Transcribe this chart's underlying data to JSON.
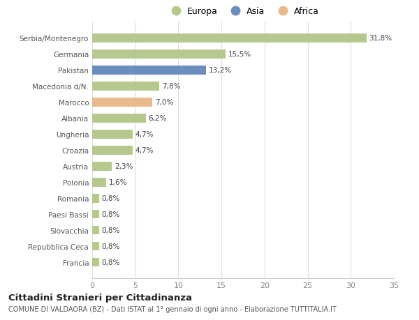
{
  "categories": [
    "Serbia/Montenegro",
    "Germania",
    "Pakistan",
    "Macedonia d/N.",
    "Marocco",
    "Albania",
    "Ungheria",
    "Croazia",
    "Austria",
    "Polonia",
    "Romania",
    "Paesi Bassi",
    "Slovacchia",
    "Repubblica Ceca",
    "Francia"
  ],
  "values": [
    31.8,
    15.5,
    13.2,
    7.8,
    7.0,
    6.2,
    4.7,
    4.7,
    2.3,
    1.6,
    0.8,
    0.8,
    0.8,
    0.8,
    0.8
  ],
  "labels": [
    "31,8%",
    "15,5%",
    "13,2%",
    "7,8%",
    "7,0%",
    "6,2%",
    "4,7%",
    "4,7%",
    "2,3%",
    "1,6%",
    "0,8%",
    "0,8%",
    "0,8%",
    "0,8%",
    "0,8%"
  ],
  "colors": [
    "#b5c98e",
    "#b5c98e",
    "#6a8fbf",
    "#b5c98e",
    "#e8b98a",
    "#b5c98e",
    "#b5c98e",
    "#b5c98e",
    "#b5c98e",
    "#b5c98e",
    "#b5c98e",
    "#b5c98e",
    "#b5c98e",
    "#b5c98e",
    "#b5c98e"
  ],
  "legend": [
    {
      "label": "Europa",
      "color": "#b5c98e"
    },
    {
      "label": "Asia",
      "color": "#6a8fbf"
    },
    {
      "label": "Africa",
      "color": "#e8b98a"
    }
  ],
  "xlim": [
    0,
    35
  ],
  "xticks": [
    0,
    5,
    10,
    15,
    20,
    25,
    30,
    35
  ],
  "title": "Cittadini Stranieri per Cittadinanza",
  "subtitle": "COMUNE DI VALDAORA (BZ) - Dati ISTAT al 1° gennaio di ogni anno - Elaborazione TUTTITALIA.IT",
  "background_color": "#ffffff",
  "grid_color": "#dddddd",
  "bar_height": 0.55
}
